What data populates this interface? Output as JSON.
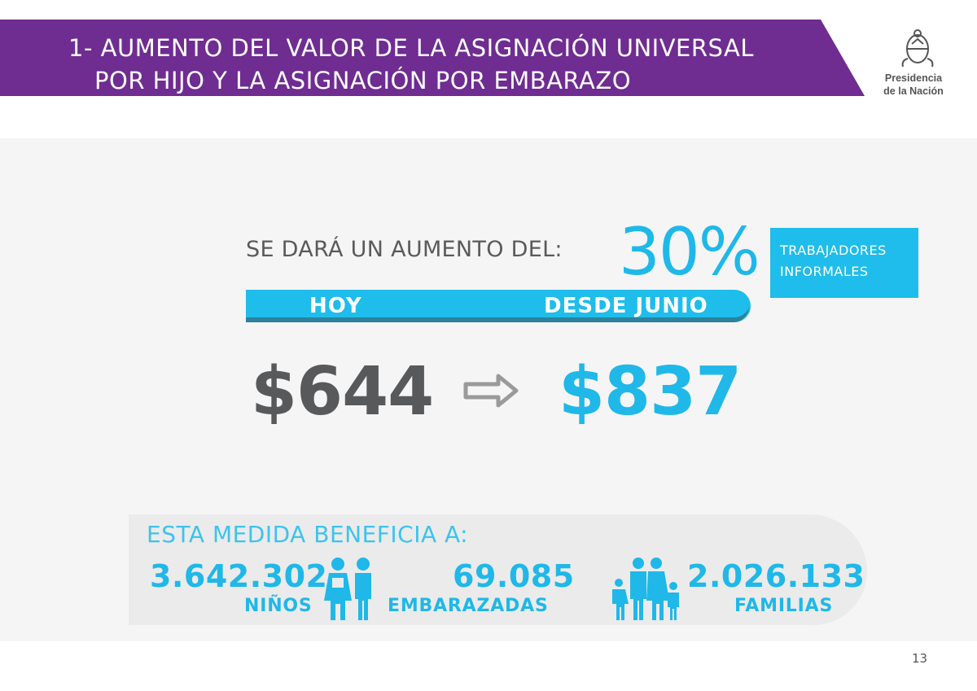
{
  "header": {
    "title_line1": "1- AUMENTO DEL VALOR DE LA ASIGNACIÓN UNIVERSAL",
    "title_line2": "POR HIJO Y LA ASIGNACIÓN POR EMBARAZO",
    "logo_line1": "Presidencia",
    "logo_line2": "de la Nación"
  },
  "increase": {
    "label": "SE DARÁ UN AUMENTO DEL:",
    "percent": "30%",
    "target_line1": "TRABAJADORES",
    "target_line2": "INFORMALES"
  },
  "comparison": {
    "today_label": "HOY",
    "future_label": "DESDE JUNIO",
    "today_value": "$644",
    "future_value": "$837"
  },
  "benefits": {
    "title": "ESTA MEDIDA BENEFICIA A:",
    "items": [
      {
        "value": "3.642.302",
        "label": "NIÑOS"
      },
      {
        "value": "69.085",
        "label": "EMBARAZADAS"
      },
      {
        "value": "2.026.133",
        "label": "FAMILIAS"
      }
    ]
  },
  "page_number": "13",
  "colors": {
    "purple": "#6f2c91",
    "cyan": "#1fb8e8",
    "dark_gray": "#58595b",
    "panel_gray": "#f5f5f5"
  }
}
